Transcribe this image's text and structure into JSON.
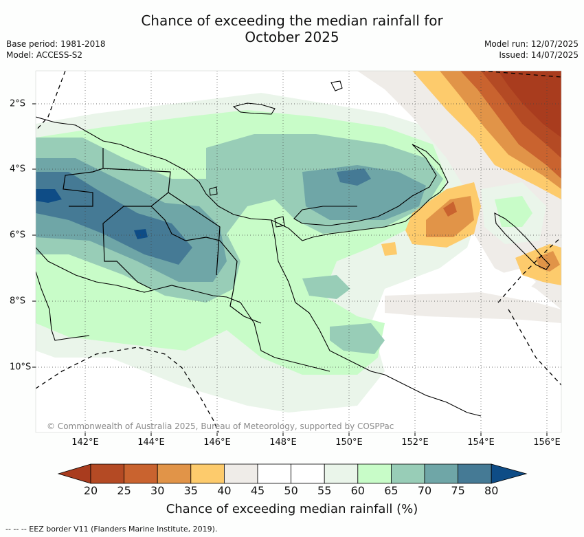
{
  "header": {
    "title_line1": "Chance of exceeding the median rainfall for",
    "title_line2": "October 2025",
    "base_period": "Base period: 1981-2018",
    "model": "Model: ACCESS-S2",
    "model_run": "Model run: 12/07/2025",
    "issued": "Issued: 14/07/2025"
  },
  "map": {
    "credit": "© Commonwealth of Australia 2025, Bureau of Meteorology, supported by COSPPac",
    "lon_labels": [
      "142°E",
      "144°E",
      "146°E",
      "148°E",
      "150°E",
      "152°E",
      "154°E",
      "156°E"
    ],
    "lat_labels": [
      "2°S",
      "4°S",
      "6°S",
      "8°S",
      "10°S"
    ]
  },
  "colorbar": {
    "title": "Chance of exceeding median rainfall (%)",
    "ticks": [
      "20",
      "25",
      "30",
      "35",
      "40",
      "45",
      "50",
      "55",
      "60",
      "65",
      "70",
      "75",
      "80"
    ],
    "colors": [
      "#a93c1e",
      "#b44a24",
      "#c9632f",
      "#e19448",
      "#fdcb6c",
      "#efece8",
      "#ffffff",
      "#ffffff",
      "#eaf5ea",
      "#c8fcc8",
      "#98cdb7",
      "#6fa6a7",
      "#457a95",
      "#0e4c86"
    ]
  },
  "footer": {
    "eez_note": "--  --  -- EEZ border V11 (Flanders Marine Institute, 2019)."
  }
}
